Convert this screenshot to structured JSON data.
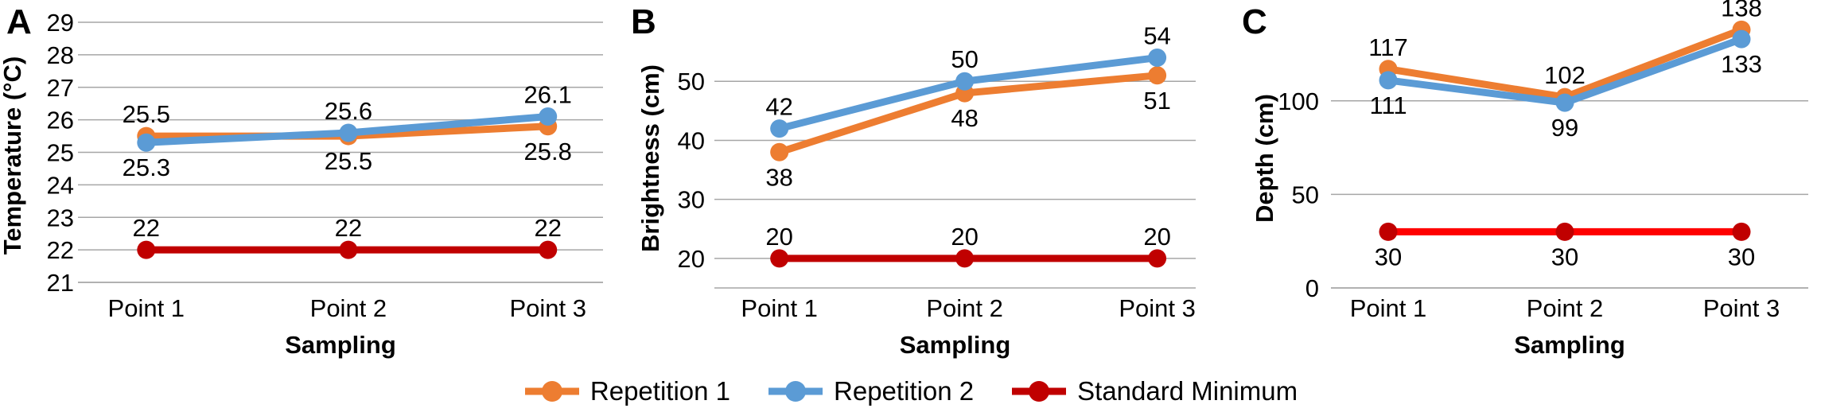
{
  "figure": {
    "description": "Three line charts comparing repetitions against a standard minimum across sampling points"
  },
  "legend": {
    "position": "bottom",
    "items": [
      {
        "label": "Repetition 1",
        "color": "#ED7D31"
      },
      {
        "label": "Repetition 2",
        "color": "#5B9BD5"
      },
      {
        "label": "Standard Minimum",
        "color": "#C00000"
      }
    ]
  },
  "chart_data": [
    {
      "type": "line",
      "panel_label": "A",
      "categories": [
        "Point 1",
        "Point 2",
        "Point 3"
      ],
      "xlabel": "Sampling",
      "ylabel": "Temperature (°C)",
      "ylim": [
        21,
        29
      ],
      "yticks": [
        21,
        22,
        23,
        24,
        25,
        26,
        27,
        28,
        29
      ],
      "grid": true,
      "legend_position": "bottom-shared",
      "series": [
        {
          "name": "Repetition 1",
          "color": "#ED7D31",
          "values": [
            25.5,
            25.5,
            25.8
          ],
          "label_pos": [
            "above",
            "below",
            "below"
          ]
        },
        {
          "name": "Repetition 2",
          "color": "#5B9BD5",
          "values": [
            25.3,
            25.6,
            26.1
          ],
          "label_pos": [
            "below",
            "above",
            "above"
          ]
        },
        {
          "name": "Standard Minimum",
          "color": "#C00000",
          "values": [
            22,
            22,
            22
          ],
          "label_pos": [
            "above",
            "above",
            "above"
          ]
        }
      ]
    },
    {
      "type": "line",
      "panel_label": "B",
      "categories": [
        "Point 1",
        "Point 2",
        "Point 3"
      ],
      "xlabel": "Sampling",
      "ylabel": "Brightness (cm)",
      "ylim": [
        15,
        60
      ],
      "yticks": [
        20,
        30,
        40,
        50
      ],
      "grid": true,
      "legend_position": "bottom-shared",
      "series": [
        {
          "name": "Repetition 1",
          "color": "#ED7D31",
          "values": [
            38,
            48,
            51
          ],
          "label_pos": [
            "below",
            "below",
            "below"
          ]
        },
        {
          "name": "Repetition 2",
          "color": "#5B9BD5",
          "values": [
            42,
            50,
            54
          ],
          "label_pos": [
            "above",
            "above",
            "above"
          ]
        },
        {
          "name": "Standard Minimum",
          "color": "#C00000",
          "values": [
            20,
            20,
            20
          ],
          "label_pos": [
            "above",
            "above",
            "above"
          ]
        }
      ]
    },
    {
      "type": "line",
      "panel_label": "C",
      "categories": [
        "Point 1",
        "Point 2",
        "Point 3"
      ],
      "xlabel": "Sampling",
      "ylabel": "Depth (cm)",
      "ylim": [
        0,
        142
      ],
      "yticks": [
        0,
        50,
        100
      ],
      "grid": true,
      "legend_position": "bottom-shared",
      "series": [
        {
          "name": "Repetition 1",
          "color": "#ED7D31",
          "values": [
            117,
            102,
            138
          ],
          "label_pos": [
            "above",
            "above",
            "above"
          ]
        },
        {
          "name": "Repetition 2",
          "color": "#5B9BD5",
          "values": [
            111,
            99,
            133
          ],
          "label_pos": [
            "below",
            "below",
            "below"
          ]
        },
        {
          "name": "Standard Minimum",
          "color": "#FF0000",
          "marker_color": "#C00000",
          "values": [
            30,
            30,
            30
          ],
          "label_pos": [
            "below",
            "below",
            "below"
          ]
        }
      ]
    }
  ]
}
